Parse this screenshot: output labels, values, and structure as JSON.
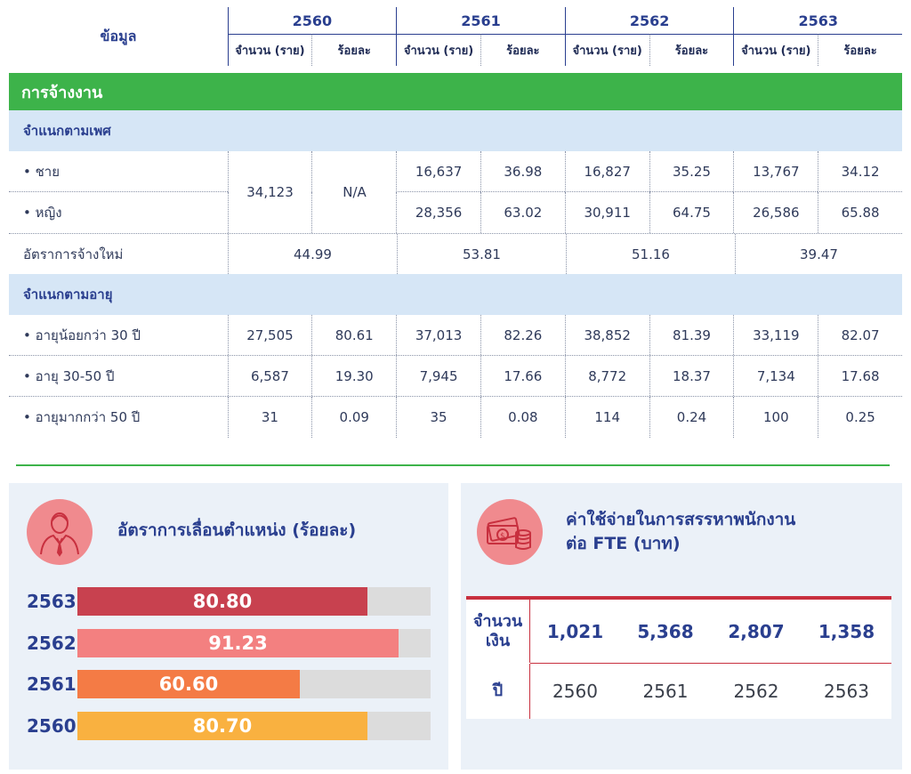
{
  "table": {
    "header_label": "ข้อมูล",
    "years": [
      "2560",
      "2561",
      "2562",
      "2563"
    ],
    "sub_count": "จำนวน (ราย)",
    "sub_percent": "ร้อยละ",
    "section_title": "การจ้างงาน",
    "gender_group": "จำแนกตามเพศ",
    "male_label": "• ชาย",
    "female_label": "• หญิง",
    "merged_2560_count": "34,123",
    "merged_2560_percent": "N/A",
    "male": [
      "16,637",
      "36.98",
      "16,827",
      "35.25",
      "13,767",
      "34.12"
    ],
    "female": [
      "28,356",
      "63.02",
      "30,911",
      "64.75",
      "26,586",
      "65.88"
    ],
    "new_hire_label": "อัตราการจ้างใหม่",
    "new_hire": [
      "44.99",
      "53.81",
      "51.16",
      "39.47"
    ],
    "age_group": "จำแนกตามอายุ",
    "age_under30_label": "• อายุน้อยกว่า 30 ปี",
    "age_under30": [
      "27,505",
      "80.61",
      "37,013",
      "82.26",
      "38,852",
      "81.39",
      "33,119",
      "82.07"
    ],
    "age_30_50_label": "• อายุ 30-50 ปี",
    "age_30_50": [
      "6,587",
      "19.30",
      "7,945",
      "17.66",
      "8,772",
      "18.37",
      "7,134",
      "17.68"
    ],
    "age_over50_label": "• อายุมากกว่า 50 ปี",
    "age_over50": [
      "31",
      "0.09",
      "35",
      "0.08",
      "114",
      "0.24",
      "100",
      "0.25"
    ]
  },
  "promotion": {
    "title": "อัตราการเลื่อนตำแหน่ง (ร้อยละ)",
    "icon": "businessman-icon",
    "bars": [
      {
        "year": "2563",
        "value": "80.80",
        "fraction": 0.82,
        "color": "#c8414f"
      },
      {
        "year": "2562",
        "value": "91.23",
        "fraction": 0.91,
        "color": "#f38080"
      },
      {
        "year": "2561",
        "value": "60.60",
        "fraction": 0.63,
        "color": "#f47b45"
      },
      {
        "year": "2560",
        "value": "80.70",
        "fraction": 0.82,
        "color": "#f9b140"
      }
    ]
  },
  "training": {
    "title_line1": "ค่าใช้จ่ายในการสรรหาพนักงาน",
    "title_line2": "ต่อ FTE (บาท)",
    "icon": "money-coins-icon",
    "amount_label_line1": "จำนวน",
    "amount_label_line2": "เงิน",
    "amounts": [
      "1,021",
      "5,368",
      "2,807",
      "1,358"
    ],
    "year_label": "ปี",
    "years": [
      "2560",
      "2561",
      "2562",
      "2563"
    ]
  },
  "colors": {
    "accent_green": "#3db34a",
    "header_blue": "#2a3f8f",
    "light_blue": "#d6e6f6",
    "accent_red": "#c8303f"
  }
}
